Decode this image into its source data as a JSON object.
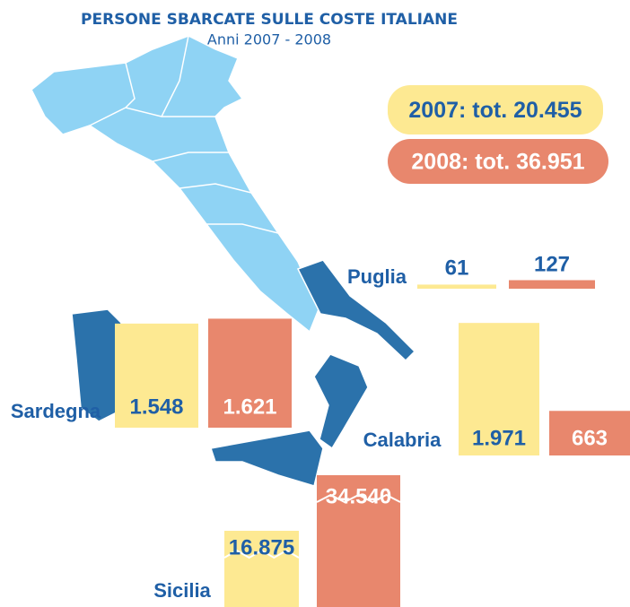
{
  "chart_data": {
    "type": "bar",
    "title": "PERSONE SBARCATE SULLE COSTE ITALIANE",
    "subtitle": "Anni 2007 - 2008",
    "categories": [
      "Puglia",
      "Sardegna",
      "Calabria",
      "Sicilia"
    ],
    "series": [
      {
        "name": "2007: tot. 20.455",
        "color": "#fde992",
        "values": [
          61,
          1548,
          1971,
          16875
        ],
        "value_labels": [
          "61",
          "1.548",
          "1.971",
          "16.875"
        ]
      },
      {
        "name": "2008: tot. 36.951",
        "color": "#e8876d",
        "values": [
          127,
          1621,
          663,
          34540
        ],
        "value_labels": [
          "127",
          "1.621",
          "663",
          "34.540"
        ]
      }
    ]
  }
}
